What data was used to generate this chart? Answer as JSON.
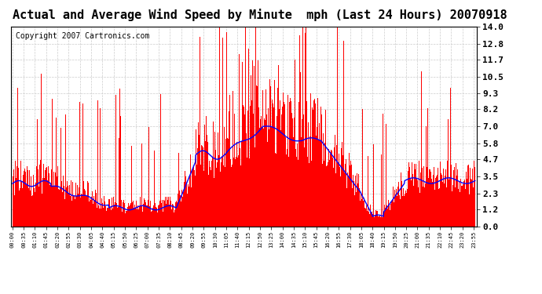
{
  "title": "Actual and Average Wind Speed by Minute  mph (Last 24 Hours) 20070918",
  "copyright": "Copyright 2007 Cartronics.com",
  "yticks": [
    0.0,
    1.2,
    2.3,
    3.5,
    4.7,
    5.8,
    7.0,
    8.2,
    9.3,
    10.5,
    11.7,
    12.8,
    14.0
  ],
  "ylim": [
    0.0,
    14.0
  ],
  "bar_color": "#FF0000",
  "line_color": "#0000FF",
  "bg_color": "#FFFFFF",
  "grid_color": "#CCCCCC",
  "title_fontsize": 11,
  "copyright_fontsize": 7,
  "num_minutes": 1440,
  "xtick_step": 35
}
